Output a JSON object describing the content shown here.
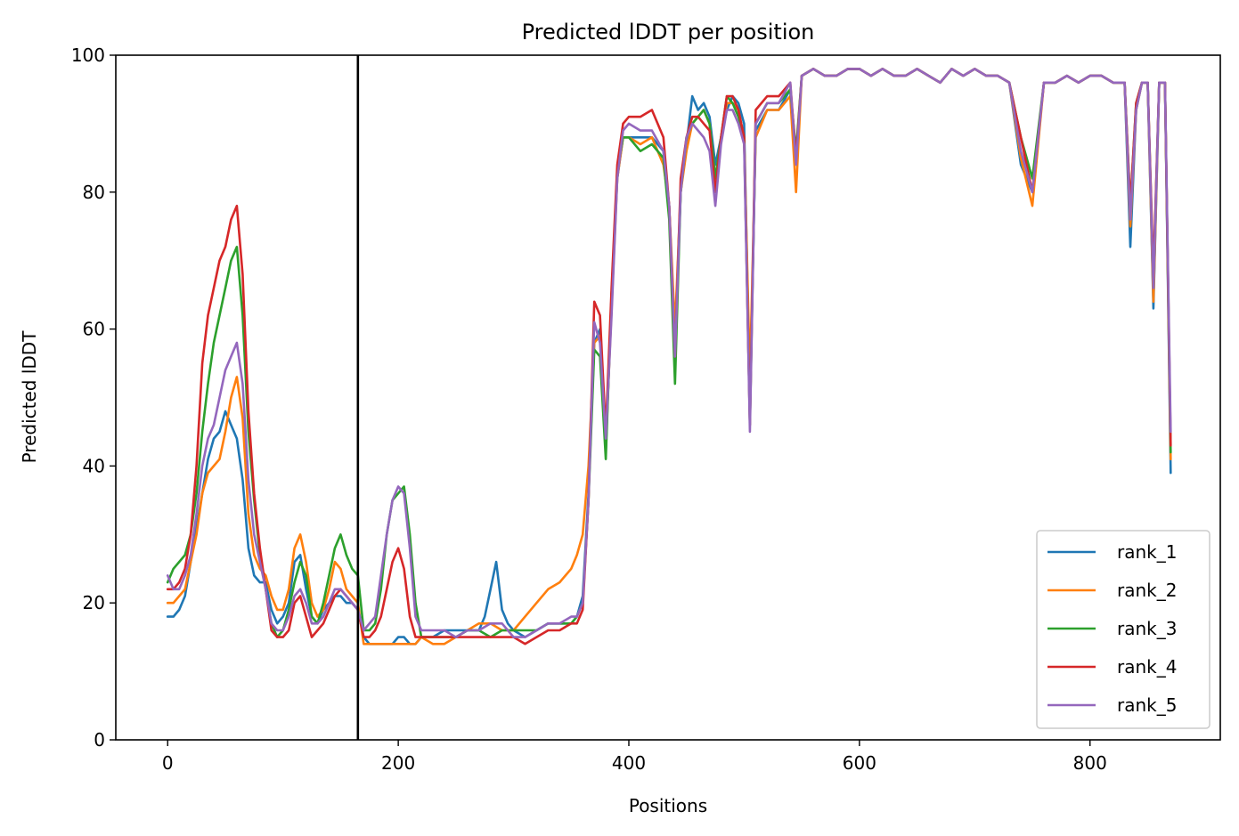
{
  "chart_data": {
    "type": "line",
    "title": "Predicted lDDT per position",
    "xlabel": "Positions",
    "ylabel": "Predicted lDDT",
    "xlim": [
      -45,
      913
    ],
    "ylim": [
      0,
      100
    ],
    "xticks": [
      0,
      200,
      400,
      600,
      800
    ],
    "yticks": [
      0,
      20,
      40,
      60,
      80,
      100
    ],
    "grid": false,
    "legend_position": "lower-right",
    "vline": {
      "x": 165,
      "color": "#000000"
    },
    "series": [
      {
        "name": "rank_1",
        "color": "#1f77b4",
        "x": [
          0,
          5,
          10,
          15,
          20,
          25,
          30,
          35,
          40,
          45,
          50,
          55,
          60,
          65,
          70,
          75,
          80,
          85,
          90,
          95,
          100,
          105,
          110,
          115,
          120,
          125,
          130,
          135,
          140,
          145,
          150,
          155,
          160,
          165,
          170,
          175,
          180,
          185,
          190,
          195,
          200,
          205,
          210,
          215,
          220,
          230,
          240,
          250,
          260,
          270,
          275,
          280,
          285,
          290,
          295,
          300,
          310,
          320,
          330,
          340,
          350,
          355,
          360,
          365,
          370,
          375,
          380,
          385,
          390,
          395,
          400,
          410,
          420,
          430,
          435,
          440,
          445,
          450,
          455,
          460,
          465,
          470,
          475,
          480,
          485,
          490,
          495,
          500,
          505,
          510,
          520,
          530,
          540,
          545,
          550,
          560,
          570,
          580,
          590,
          600,
          610,
          620,
          630,
          640,
          650,
          660,
          670,
          680,
          690,
          700,
          710,
          720,
          730,
          740,
          750,
          760,
          770,
          780,
          790,
          800,
          810,
          820,
          830,
          835,
          840,
          845,
          850,
          855,
          860,
          865,
          870
        ],
        "y": [
          18,
          18,
          19,
          21,
          26,
          31,
          36,
          41,
          44,
          45,
          48,
          46,
          44,
          38,
          28,
          24,
          23,
          23,
          19,
          17,
          18,
          20,
          26,
          27,
          22,
          18,
          17,
          19,
          20,
          21,
          21,
          20,
          20,
          19,
          15,
          14,
          14,
          14,
          14,
          14,
          15,
          15,
          14,
          14,
          15,
          15,
          16,
          16,
          16,
          16,
          18,
          22,
          26,
          19,
          17,
          16,
          15,
          16,
          17,
          17,
          17,
          18,
          21,
          36,
          58,
          60,
          42,
          65,
          82,
          88,
          88,
          88,
          88,
          86,
          78,
          58,
          80,
          87,
          94,
          92,
          93,
          91,
          84,
          88,
          92,
          94,
          93,
          90,
          48,
          89,
          92,
          92,
          95,
          84,
          97,
          98,
          97,
          97,
          98,
          98,
          97,
          98,
          97,
          97,
          98,
          97,
          96,
          98,
          97,
          98,
          97,
          97,
          96,
          84,
          80,
          96,
          96,
          97,
          96,
          97,
          97,
          96,
          96,
          72,
          92,
          96,
          96,
          63,
          96,
          96,
          39
        ]
      },
      {
        "name": "rank_2",
        "color": "#ff7f0e",
        "x": [
          0,
          5,
          10,
          15,
          20,
          25,
          30,
          35,
          40,
          45,
          50,
          55,
          60,
          65,
          70,
          75,
          80,
          85,
          90,
          95,
          100,
          105,
          110,
          115,
          120,
          125,
          130,
          135,
          140,
          145,
          150,
          155,
          160,
          165,
          170,
          175,
          180,
          185,
          190,
          195,
          200,
          205,
          210,
          215,
          220,
          230,
          240,
          250,
          260,
          270,
          280,
          290,
          300,
          310,
          320,
          330,
          340,
          350,
          355,
          360,
          365,
          370,
          375,
          380,
          385,
          390,
          395,
          400,
          410,
          420,
          430,
          435,
          440,
          445,
          450,
          455,
          460,
          465,
          470,
          475,
          480,
          485,
          490,
          495,
          500,
          505,
          510,
          520,
          530,
          540,
          545,
          550,
          560,
          570,
          580,
          590,
          600,
          610,
          620,
          630,
          640,
          650,
          660,
          670,
          680,
          690,
          700,
          710,
          720,
          730,
          740,
          750,
          760,
          770,
          780,
          790,
          800,
          810,
          820,
          830,
          835,
          840,
          845,
          850,
          855,
          860,
          865,
          870
        ],
        "y": [
          20,
          20,
          21,
          22,
          26,
          30,
          36,
          39,
          40,
          41,
          45,
          50,
          53,
          47,
          33,
          27,
          25,
          24,
          21,
          19,
          19,
          22,
          28,
          30,
          26,
          20,
          18,
          19,
          22,
          26,
          25,
          22,
          21,
          20,
          14,
          14,
          14,
          14,
          14,
          14,
          14,
          14,
          14,
          14,
          15,
          14,
          14,
          15,
          16,
          17,
          17,
          16,
          16,
          18,
          20,
          22,
          23,
          25,
          27,
          30,
          40,
          58,
          59,
          43,
          63,
          82,
          88,
          88,
          87,
          88,
          84,
          78,
          60,
          80,
          86,
          90,
          91,
          92,
          90,
          82,
          88,
          93,
          93,
          92,
          88,
          53,
          88,
          92,
          92,
          94,
          80,
          97,
          98,
          97,
          97,
          98,
          98,
          97,
          98,
          97,
          97,
          98,
          97,
          96,
          98,
          97,
          98,
          97,
          97,
          96,
          85,
          78,
          96,
          96,
          97,
          96,
          97,
          97,
          96,
          96,
          75,
          92,
          96,
          96,
          64,
          96,
          96,
          41
        ]
      },
      {
        "name": "rank_3",
        "color": "#2ca02c",
        "x": [
          0,
          5,
          10,
          15,
          20,
          25,
          30,
          35,
          40,
          45,
          50,
          55,
          60,
          65,
          70,
          75,
          80,
          85,
          90,
          95,
          100,
          105,
          110,
          115,
          120,
          125,
          130,
          135,
          140,
          145,
          150,
          155,
          160,
          165,
          170,
          175,
          180,
          185,
          190,
          195,
          200,
          205,
          210,
          215,
          220,
          230,
          240,
          250,
          260,
          270,
          280,
          290,
          300,
          310,
          320,
          330,
          340,
          350,
          355,
          360,
          365,
          370,
          375,
          380,
          385,
          390,
          395,
          400,
          410,
          420,
          430,
          435,
          440,
          445,
          450,
          455,
          460,
          465,
          470,
          475,
          480,
          485,
          490,
          495,
          500,
          505,
          510,
          520,
          530,
          540,
          545,
          550,
          560,
          570,
          580,
          590,
          600,
          610,
          620,
          630,
          640,
          650,
          660,
          670,
          680,
          690,
          700,
          710,
          720,
          730,
          740,
          750,
          760,
          770,
          780,
          790,
          800,
          810,
          820,
          830,
          835,
          840,
          845,
          850,
          855,
          860,
          865,
          870
        ],
        "y": [
          23,
          25,
          26,
          27,
          30,
          36,
          45,
          52,
          58,
          62,
          66,
          70,
          72,
          62,
          45,
          35,
          27,
          22,
          17,
          15,
          16,
          19,
          23,
          26,
          24,
          18,
          17,
          20,
          24,
          28,
          30,
          27,
          25,
          24,
          16,
          16,
          17,
          22,
          30,
          35,
          36,
          37,
          30,
          20,
          15,
          15,
          15,
          15,
          16,
          16,
          15,
          16,
          16,
          16,
          16,
          17,
          17,
          17,
          18,
          20,
          35,
          57,
          56,
          41,
          65,
          83,
          88,
          88,
          86,
          87,
          85,
          76,
          52,
          80,
          88,
          90,
          91,
          92,
          90,
          82,
          88,
          94,
          93,
          91,
          88,
          46,
          90,
          93,
          93,
          95,
          86,
          97,
          98,
          97,
          97,
          98,
          98,
          97,
          98,
          97,
          97,
          98,
          97,
          96,
          98,
          97,
          98,
          97,
          97,
          96,
          88,
          82,
          96,
          96,
          97,
          96,
          97,
          97,
          96,
          96,
          78,
          93,
          96,
          96,
          67,
          96,
          96,
          42
        ]
      },
      {
        "name": "rank_4",
        "color": "#d62728",
        "x": [
          0,
          5,
          10,
          15,
          20,
          25,
          30,
          35,
          40,
          45,
          50,
          55,
          60,
          65,
          70,
          75,
          80,
          85,
          90,
          95,
          100,
          105,
          110,
          115,
          120,
          125,
          130,
          135,
          140,
          145,
          150,
          155,
          160,
          165,
          170,
          175,
          180,
          185,
          190,
          195,
          200,
          205,
          210,
          215,
          220,
          230,
          240,
          250,
          260,
          270,
          280,
          290,
          300,
          310,
          320,
          330,
          340,
          350,
          355,
          360,
          365,
          370,
          375,
          380,
          385,
          390,
          395,
          400,
          410,
          420,
          430,
          435,
          440,
          445,
          450,
          455,
          460,
          465,
          470,
          475,
          480,
          485,
          490,
          495,
          500,
          505,
          510,
          520,
          530,
          540,
          545,
          550,
          560,
          570,
          580,
          590,
          600,
          610,
          620,
          630,
          640,
          650,
          660,
          670,
          680,
          690,
          700,
          710,
          720,
          730,
          740,
          750,
          760,
          770,
          780,
          790,
          800,
          810,
          820,
          830,
          835,
          840,
          845,
          850,
          855,
          860,
          865,
          870
        ],
        "y": [
          22,
          22,
          23,
          25,
          30,
          40,
          55,
          62,
          66,
          70,
          72,
          76,
          78,
          68,
          48,
          36,
          28,
          22,
          16,
          15,
          15,
          16,
          20,
          21,
          18,
          15,
          16,
          17,
          19,
          21,
          22,
          21,
          20,
          19,
          15,
          15,
          16,
          18,
          22,
          26,
          28,
          25,
          18,
          15,
          15,
          15,
          15,
          15,
          15,
          15,
          15,
          15,
          15,
          14,
          15,
          16,
          16,
          17,
          17,
          19,
          35,
          64,
          62,
          45,
          66,
          84,
          90,
          91,
          91,
          92,
          88,
          78,
          56,
          82,
          88,
          91,
          91,
          90,
          89,
          80,
          88,
          94,
          94,
          92,
          88,
          46,
          92,
          94,
          94,
          96,
          85,
          97,
          98,
          97,
          97,
          98,
          98,
          97,
          98,
          97,
          97,
          98,
          97,
          96,
          98,
          97,
          98,
          97,
          97,
          96,
          88,
          80,
          96,
          96,
          97,
          96,
          97,
          97,
          96,
          96,
          78,
          93,
          96,
          96,
          68,
          96,
          96,
          43
        ]
      },
      {
        "name": "rank_5",
        "color": "#9467bd",
        "x": [
          0,
          5,
          10,
          15,
          20,
          25,
          30,
          35,
          40,
          45,
          50,
          55,
          60,
          65,
          70,
          75,
          80,
          85,
          90,
          95,
          100,
          105,
          110,
          115,
          120,
          125,
          130,
          135,
          140,
          145,
          150,
          155,
          160,
          165,
          170,
          175,
          180,
          185,
          190,
          195,
          200,
          205,
          210,
          215,
          220,
          230,
          240,
          250,
          260,
          270,
          280,
          290,
          300,
          310,
          320,
          330,
          340,
          350,
          355,
          360,
          365,
          370,
          375,
          380,
          385,
          390,
          395,
          400,
          410,
          420,
          430,
          435,
          440,
          445,
          450,
          455,
          460,
          465,
          470,
          475,
          480,
          485,
          490,
          495,
          500,
          505,
          510,
          520,
          530,
          540,
          545,
          550,
          560,
          570,
          580,
          590,
          600,
          610,
          620,
          630,
          640,
          650,
          660,
          670,
          680,
          690,
          700,
          710,
          720,
          730,
          740,
          750,
          760,
          770,
          780,
          790,
          800,
          810,
          820,
          830,
          835,
          840,
          845,
          850,
          855,
          860,
          865,
          870
        ],
        "y": [
          24,
          22,
          22,
          24,
          27,
          33,
          40,
          44,
          46,
          50,
          54,
          56,
          58,
          52,
          38,
          30,
          26,
          22,
          17,
          16,
          16,
          18,
          21,
          22,
          20,
          17,
          17,
          18,
          20,
          22,
          22,
          21,
          20,
          19,
          16,
          17,
          18,
          24,
          30,
          35,
          37,
          36,
          28,
          18,
          16,
          16,
          16,
          15,
          16,
          16,
          17,
          17,
          15,
          15,
          16,
          17,
          17,
          18,
          18,
          20,
          35,
          61,
          58,
          44,
          62,
          82,
          89,
          90,
          89,
          89,
          86,
          78,
          56,
          80,
          88,
          90,
          89,
          88,
          86,
          78,
          87,
          92,
          92,
          90,
          87,
          45,
          90,
          93,
          93,
          96,
          84,
          97,
          98,
          97,
          97,
          98,
          98,
          97,
          98,
          97,
          97,
          98,
          97,
          96,
          98,
          97,
          98,
          97,
          97,
          96,
          86,
          80,
          96,
          96,
          97,
          96,
          97,
          97,
          96,
          96,
          76,
          92,
          96,
          96,
          66,
          96,
          96,
          45
        ]
      }
    ]
  }
}
